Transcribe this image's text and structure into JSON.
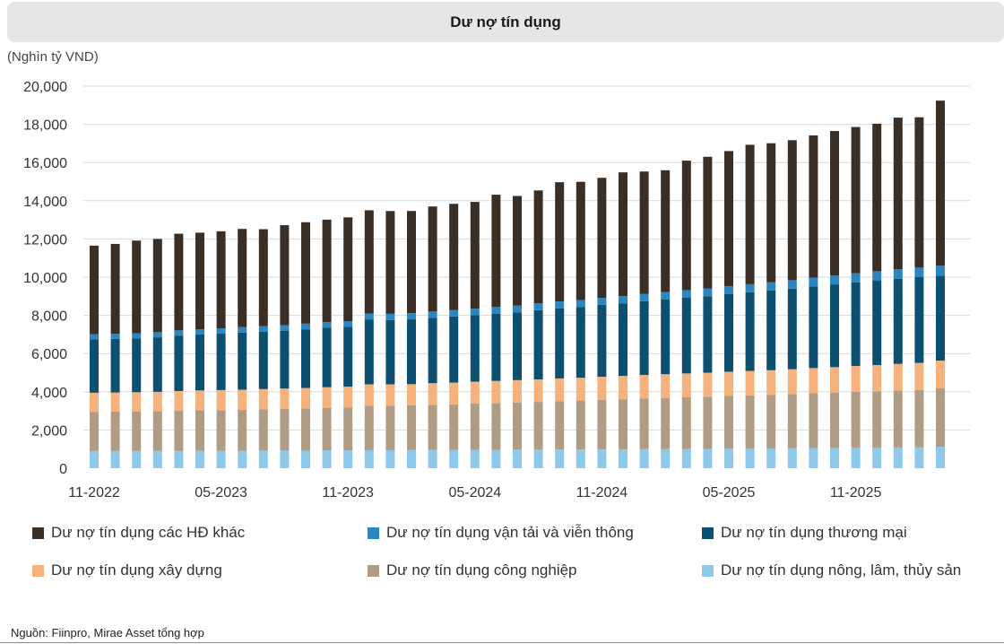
{
  "header": {
    "title": "Dư nợ tín dụng"
  },
  "unit_label": "(Nghìn tỷ VND)",
  "source": "Nguồn: Fiinpro, Mirae Asset tổng hợp",
  "chart_data": {
    "type": "bar",
    "stacked": true,
    "title": "Dư nợ tín dụng",
    "ylabel": "(Nghìn tỷ VND)",
    "ylim": [
      0,
      20000
    ],
    "yticks": [
      "0",
      "2,000",
      "4,000",
      "6,000",
      "8,000",
      "10,000",
      "12,000",
      "14,000",
      "16,000",
      "18,000",
      "20,000"
    ],
    "ytick_values": [
      0,
      2000,
      4000,
      6000,
      8000,
      10000,
      12000,
      14000,
      16000,
      18000,
      20000
    ],
    "xtick_labels": [
      {
        "index": 0,
        "label": "11-2022"
      },
      {
        "index": 6,
        "label": "05-2023"
      },
      {
        "index": 12,
        "label": "11-2023"
      },
      {
        "index": 18,
        "label": "05-2024"
      },
      {
        "index": 24,
        "label": "11-2024"
      },
      {
        "index": 30,
        "label": "05-2025"
      },
      {
        "index": 36,
        "label": "11-2025"
      }
    ],
    "n_bars": 41,
    "grid": true,
    "legend_position": "bottom",
    "series": [
      {
        "name": "Dư nợ tín dụng nông, lâm, thủy sản",
        "color": "#8ec9ea",
        "values": [
          900,
          900,
          900,
          900,
          900,
          910,
          910,
          910,
          920,
          920,
          920,
          930,
          930,
          940,
          940,
          950,
          950,
          950,
          960,
          960,
          970,
          970,
          980,
          980,
          990,
          990,
          1000,
          1000,
          1010,
          1010,
          1020,
          1020,
          1030,
          1040,
          1050,
          1060,
          1070,
          1080,
          1090,
          1100,
          1120
        ]
      },
      {
        "name": "Dư nợ tín dụng công nghiệp",
        "color": "#b09c84",
        "values": [
          2050,
          2060,
          2070,
          2080,
          2100,
          2120,
          2130,
          2140,
          2160,
          2180,
          2200,
          2220,
          2240,
          2330,
          2330,
          2340,
          2370,
          2390,
          2420,
          2450,
          2470,
          2500,
          2530,
          2560,
          2590,
          2620,
          2650,
          2680,
          2700,
          2730,
          2760,
          2790,
          2810,
          2840,
          2870,
          2900,
          2930,
          2950,
          2980,
          3000,
          3060
        ]
      },
      {
        "name": "Dư nợ tín dụng xây dựng",
        "color": "#f5b27d",
        "values": [
          1000,
          1000,
          1010,
          1020,
          1040,
          1040,
          1050,
          1060,
          1060,
          1070,
          1080,
          1090,
          1100,
          1120,
          1120,
          1110,
          1130,
          1140,
          1150,
          1160,
          1170,
          1180,
          1190,
          1200,
          1210,
          1220,
          1230,
          1240,
          1250,
          1260,
          1270,
          1280,
          1290,
          1300,
          1320,
          1330,
          1350,
          1370,
          1390,
          1410,
          1450
        ]
      },
      {
        "name": "Dư nợ tín dụng thương mại",
        "color": "#0c4f6e",
        "values": [
          2800,
          2810,
          2820,
          2850,
          2900,
          2930,
          2950,
          2990,
          3010,
          3030,
          3070,
          3110,
          3130,
          3380,
          3370,
          3390,
          3420,
          3460,
          3480,
          3520,
          3550,
          3620,
          3670,
          3700,
          3760,
          3800,
          3860,
          3910,
          3960,
          4000,
          4060,
          4120,
          4170,
          4220,
          4280,
          4330,
          4380,
          4430,
          4460,
          4490,
          4450
        ]
      },
      {
        "name": "Dư nợ tín dụng vận tải và viễn thông",
        "color": "#2b85c1",
        "values": [
          260,
          260,
          265,
          270,
          275,
          275,
          280,
          285,
          290,
          290,
          295,
          300,
          300,
          320,
          320,
          325,
          330,
          335,
          340,
          345,
          350,
          355,
          360,
          365,
          370,
          375,
          380,
          385,
          390,
          400,
          410,
          420,
          430,
          440,
          450,
          460,
          470,
          480,
          490,
          500,
          520
        ]
      },
      {
        "name": "Dư nợ tín dụng các HĐ khác",
        "color": "#3b2f25",
        "values": [
          4640,
          4710,
          4850,
          4880,
          5060,
          5055,
          5080,
          5140,
          5070,
          5230,
          5310,
          5360,
          5430,
          5410,
          5380,
          5350,
          5500,
          5565,
          5590,
          5880,
          5740,
          5915,
          6240,
          6185,
          6280,
          6480,
          6410,
          6380,
          6790,
          6900,
          7080,
          7300,
          7280,
          7330,
          7450,
          7570,
          7660,
          7720,
          7940,
          7870,
          8640
        ]
      }
    ]
  },
  "legend": [
    {
      "name": "Dư nợ tín dụng các HĐ khác",
      "color": "#3b2f25"
    },
    {
      "name": "Dư nợ tín dụng vận tải và viễn thông",
      "color": "#2b85c1"
    },
    {
      "name": "Dư nợ tín dụng thương mại",
      "color": "#0c4f6e"
    },
    {
      "name": "Dư nợ tín dụng xây dựng",
      "color": "#f5b27d"
    },
    {
      "name": "Dư nợ tín dụng công nghiệp",
      "color": "#b09c84"
    },
    {
      "name": "Dư nợ tín dụng nông, lâm, thủy sản",
      "color": "#8ec9ea"
    }
  ]
}
